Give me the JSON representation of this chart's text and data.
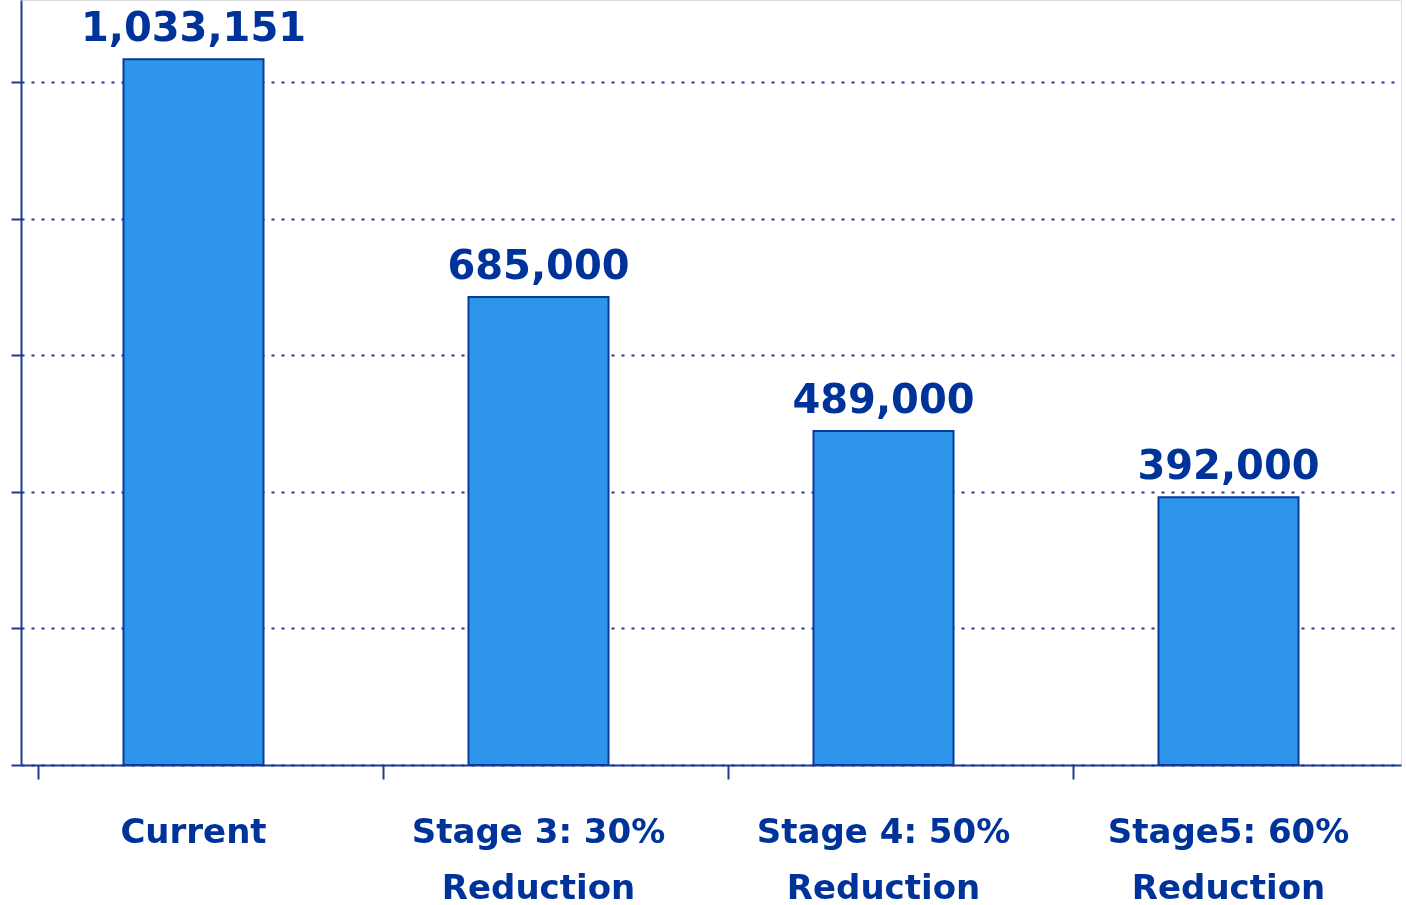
{
  "chart_data": {
    "type": "bar",
    "categories": [
      "Current",
      "Stage 3: 30% Reduction",
      "Stage 4: 50% Reduction",
      "Stage5: 60% Reduction"
    ],
    "values": [
      1033151,
      685000,
      489000,
      392000
    ],
    "value_labels": [
      "1,033,151",
      "685,000",
      "489,000",
      "392,000"
    ],
    "color": "#2e96ea",
    "ylim": [
      0,
      1120000
    ],
    "yticks": [
      {
        "value": 0,
        "label": null
      },
      {
        "value": 200000,
        "label": null
      },
      {
        "value": 400000,
        "label": null
      },
      {
        "value": 600000,
        "label": null
      },
      {
        "value": 800000,
        "label": null
      },
      {
        "value": 1000000,
        "label": null
      }
    ],
    "grid": "y",
    "tick_labels": "x"
  }
}
